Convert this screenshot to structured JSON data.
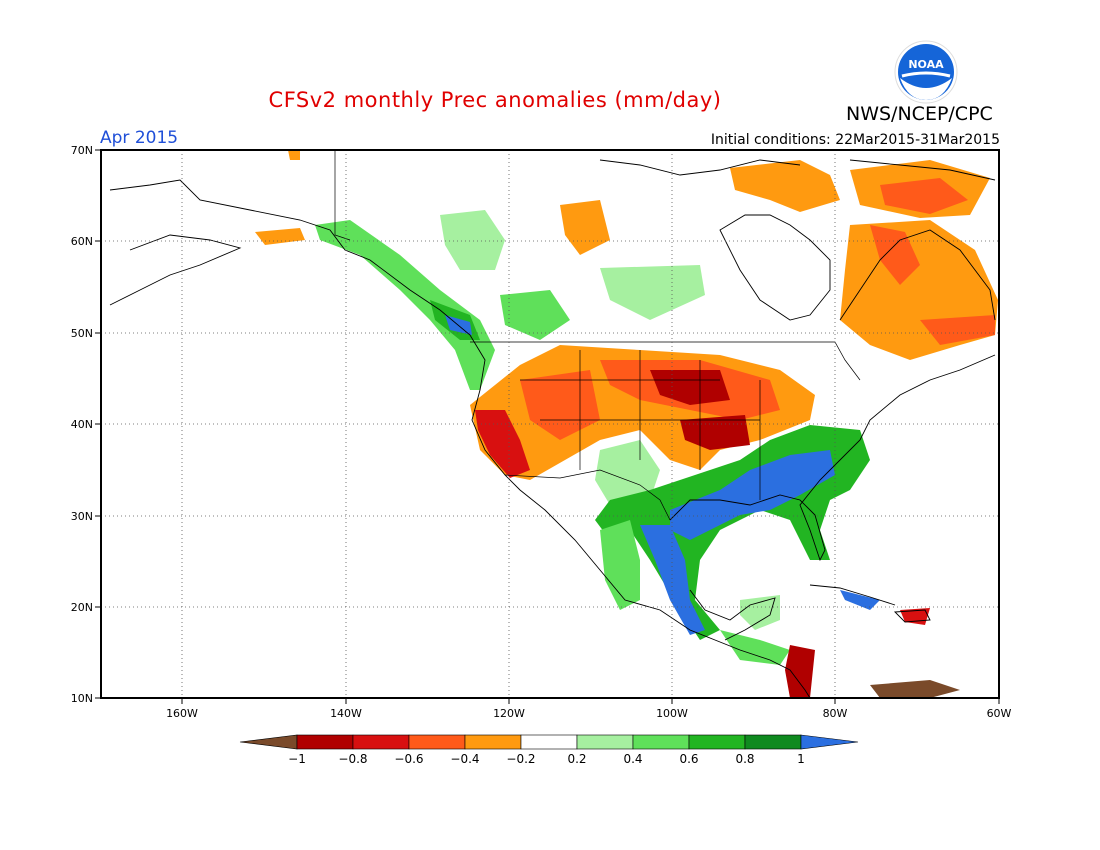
{
  "title": "CFSv2 monthly Prec anomalies (mm/day)",
  "agency": "NWS/NCEP/CPC",
  "logo_text": "NOAA",
  "period": "Apr 2015",
  "initial_conditions": "Initial conditions: 22Mar2015-31Mar2015",
  "axes": {
    "lat_labels": [
      "70N",
      "60N",
      "50N",
      "40N",
      "30N",
      "20N",
      "10N"
    ],
    "lon_labels": [
      "160W",
      "140W",
      "120W",
      "100W",
      "80W",
      "60W"
    ],
    "lat_range": [
      10,
      70
    ],
    "lon_range": [
      -170,
      -60
    ]
  },
  "colorbar": {
    "labels": [
      "-1",
      "-0.8",
      "-0.6",
      "-0.4",
      "-0.2",
      "0.2",
      "0.4",
      "0.6",
      "0.8",
      "1"
    ],
    "colors": [
      "#7a4a2a",
      "#b00000",
      "#d81010",
      "#ff5a1a",
      "#ff9a10",
      "#ffffff",
      "#a6f0a0",
      "#5fe05a",
      "#22b522",
      "#0f8a1f",
      "#2b6fe0"
    ]
  },
  "colors": {
    "title": "#e00000",
    "period": "#1f4fd8",
    "wet_strong": "#2b6fe0",
    "dry_strong": "#b00000"
  }
}
